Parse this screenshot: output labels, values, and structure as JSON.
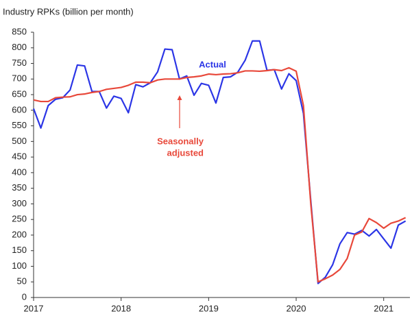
{
  "chart_data": {
    "type": "line",
    "title": "Industry RPKs (billion per month)",
    "x": [
      2017,
      2017.083,
      2017.167,
      2017.25,
      2017.333,
      2017.417,
      2017.5,
      2017.583,
      2017.667,
      2017.75,
      2017.833,
      2017.917,
      2018,
      2018.083,
      2018.167,
      2018.25,
      2018.333,
      2018.417,
      2018.5,
      2018.583,
      2018.667,
      2018.75,
      2018.833,
      2018.917,
      2019,
      2019.083,
      2019.167,
      2019.25,
      2019.333,
      2019.417,
      2019.5,
      2019.583,
      2019.667,
      2019.75,
      2019.833,
      2019.917,
      2020,
      2020.083,
      2020.167,
      2020.25,
      2020.333,
      2020.417,
      2020.5,
      2020.583,
      2020.667,
      2020.75,
      2020.833,
      2020.917,
      2021,
      2021.083,
      2021.167,
      2021.25
    ],
    "series": [
      {
        "name": "Actual",
        "color": "#2b35e6",
        "values": [
          605,
          543,
          615,
          635,
          640,
          665,
          745,
          742,
          660,
          660,
          607,
          645,
          638,
          592,
          682,
          675,
          688,
          723,
          796,
          794,
          700,
          710,
          648,
          686,
          680,
          623,
          705,
          707,
          722,
          760,
          822,
          822,
          728,
          730,
          668,
          717,
          695,
          590,
          310,
          45,
          65,
          105,
          172,
          208,
          203,
          215,
          197,
          218,
          188,
          158,
          232,
          245
        ]
      },
      {
        "name": "Seasonally adjusted",
        "color": "#e8483a",
        "values": [
          633,
          628,
          628,
          640,
          642,
          643,
          650,
          652,
          657,
          660,
          667,
          670,
          673,
          680,
          690,
          690,
          688,
          697,
          700,
          700,
          700,
          705,
          707,
          710,
          716,
          714,
          716,
          717,
          720,
          726,
          726,
          725,
          727,
          730,
          727,
          736,
          725,
          615,
          300,
          50,
          60,
          72,
          90,
          125,
          200,
          210,
          253,
          240,
          222,
          238,
          245,
          256
        ]
      }
    ],
    "annotations": [
      "Actual",
      "Seasonally",
      "adjusted"
    ],
    "xlim": [
      2017,
      2021.3
    ],
    "xticks": [
      2017,
      2018,
      2019,
      2020,
      2021
    ],
    "ylim": [
      0,
      850
    ],
    "yticks": [
      0,
      50,
      100,
      150,
      200,
      250,
      300,
      350,
      400,
      450,
      500,
      550,
      600,
      650,
      700,
      750,
      800,
      850
    ]
  }
}
